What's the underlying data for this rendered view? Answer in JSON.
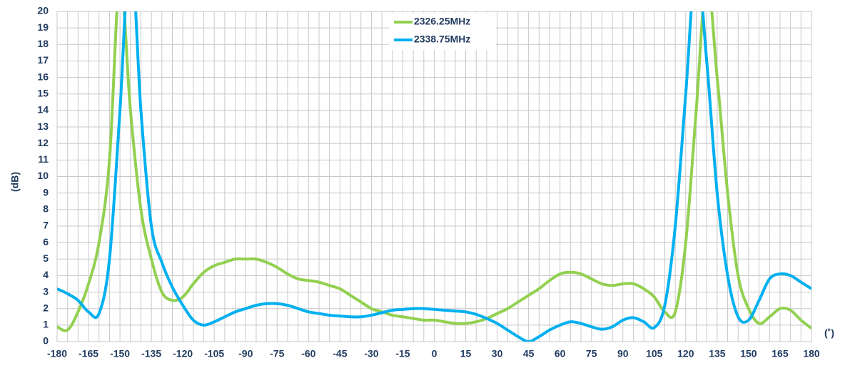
{
  "chart_data": {
    "type": "line",
    "x": [
      -180,
      -175,
      -170,
      -165,
      -160,
      -155,
      -150,
      -145,
      -140,
      -135,
      -130,
      -125,
      -120,
      -115,
      -110,
      -105,
      -100,
      -95,
      -90,
      -85,
      -80,
      -75,
      -70,
      -65,
      -60,
      -55,
      -50,
      -45,
      -40,
      -35,
      -30,
      -25,
      -20,
      -15,
      -10,
      -5,
      0,
      5,
      10,
      15,
      20,
      25,
      30,
      35,
      40,
      45,
      50,
      55,
      60,
      65,
      70,
      75,
      80,
      85,
      90,
      95,
      100,
      105,
      110,
      115,
      120,
      125,
      130,
      135,
      140,
      145,
      150,
      155,
      160,
      165,
      170,
      175,
      180
    ],
    "series": [
      {
        "name": "2326.25MHz",
        "color": "#92d050",
        "values": [
          0.9,
          0.7,
          1.8,
          3.5,
          6,
          11,
          22,
          14,
          8,
          5,
          3,
          2.5,
          2.7,
          3.5,
          4.2,
          4.6,
          4.8,
          5.0,
          5.0,
          5.0,
          4.8,
          4.5,
          4.1,
          3.8,
          3.7,
          3.6,
          3.4,
          3.2,
          2.8,
          2.4,
          2.0,
          1.8,
          1.6,
          1.5,
          1.4,
          1.3,
          1.3,
          1.2,
          1.1,
          1.1,
          1.2,
          1.4,
          1.7,
          2.0,
          2.4,
          2.8,
          3.2,
          3.7,
          4.1,
          4.2,
          4.1,
          3.8,
          3.5,
          3.4,
          3.5,
          3.5,
          3.2,
          2.7,
          1.8,
          1.8,
          6,
          14,
          22,
          16,
          9,
          4,
          2,
          1.1,
          1.5,
          2.0,
          1.9,
          1.3,
          0.8
        ]
      },
      {
        "name": "2338.75MHz",
        "color": "#00b0f0",
        "values": [
          3.2,
          2.9,
          2.5,
          1.8,
          1.7,
          5,
          14,
          24,
          14,
          7,
          4.8,
          3.3,
          2.2,
          1.3,
          1.0,
          1.2,
          1.5,
          1.8,
          2.0,
          2.2,
          2.3,
          2.3,
          2.2,
          2.0,
          1.8,
          1.7,
          1.6,
          1.55,
          1.5,
          1.5,
          1.6,
          1.75,
          1.9,
          1.95,
          2.0,
          2.0,
          1.95,
          1.9,
          1.85,
          1.8,
          1.65,
          1.4,
          1.1,
          0.7,
          0.3,
          0.0,
          0.3,
          0.7,
          1.0,
          1.2,
          1.1,
          0.9,
          0.75,
          0.9,
          1.3,
          1.45,
          1.2,
          0.85,
          2.2,
          7,
          15,
          23,
          17,
          9,
          4,
          1.5,
          1.3,
          2.5,
          3.8,
          4.1,
          4.0,
          3.6,
          3.2
        ]
      }
    ],
    "ylabel": "(dB)",
    "xlabel": "(˚)",
    "xlim": [
      -180,
      180
    ],
    "xticks": [
      -180,
      -165,
      -150,
      -135,
      -120,
      -105,
      -90,
      -75,
      -60,
      -45,
      -30,
      -15,
      0,
      15,
      30,
      45,
      60,
      75,
      90,
      105,
      120,
      135,
      150,
      165,
      180
    ],
    "xgrid_step": 5,
    "ylim": [
      0,
      20
    ],
    "yticks": [
      0,
      1,
      2,
      3,
      4,
      5,
      6,
      7,
      8,
      9,
      10,
      11,
      12,
      13,
      14,
      15,
      16,
      17,
      18,
      19,
      20
    ],
    "grid": true
  }
}
